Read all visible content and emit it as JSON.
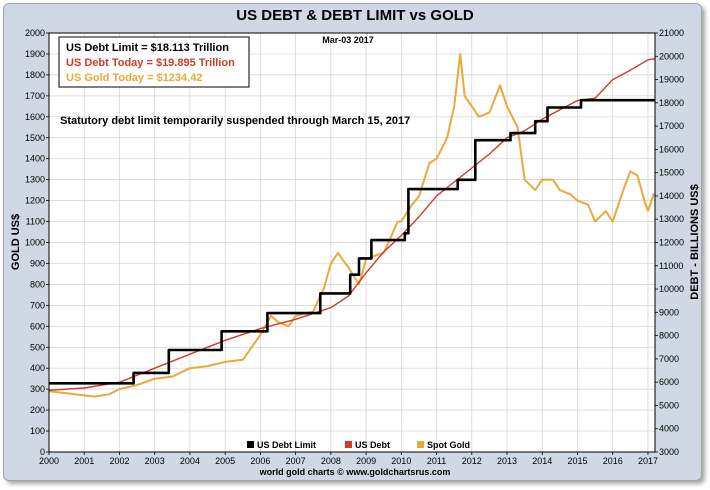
{
  "colors": {
    "limit": "#000000",
    "debt": "#d03a2c",
    "gold": "#eaa93a",
    "grid": "#d0d0d0",
    "plot_bg": "#ffffff"
  },
  "chart_data": {
    "type": "line",
    "title": "US DEBT & DEBT LIMIT vs GOLD",
    "date_label": "Mar-03  2017",
    "ylabel_left": "GOLD US$",
    "ylabel_right": "DEBT - BILLIONS US$",
    "credit": "world gold charts © www.goldchartsrus.com",
    "note": "Statutory debt limit temporarily suspended through March  15, 2017",
    "info_lines": [
      {
        "text": "US Debt Limit    = $18.113 Trillion",
        "color": "#000000"
      },
      {
        "text": "US Debt Today = $19.895 Trillion",
        "color": "#d03a2c"
      },
      {
        "text": "US Gold Today = $1234.42",
        "color": "#eaa93a"
      }
    ],
    "xlim": [
      2000,
      2017.2
    ],
    "ylim_left": [
      0,
      2000
    ],
    "ylim_right": [
      3000,
      21000
    ],
    "x_ticks": [
      "2000",
      "2001",
      "2002",
      "2003",
      "2004",
      "2005",
      "2006",
      "2007",
      "2008",
      "2009",
      "2010",
      "2011",
      "2012",
      "2013",
      "2014",
      "2015",
      "2016",
      "2017"
    ],
    "left_ticks": [
      "0",
      "100",
      "200",
      "300",
      "400",
      "500",
      "600",
      "700",
      "800",
      "900",
      "1000",
      "1100",
      "1200",
      "1300",
      "1400",
      "1500",
      "1600",
      "1700",
      "1800",
      "1900",
      "2000"
    ],
    "right_ticks": [
      "3000",
      "4000",
      "5000",
      "6000",
      "7000",
      "8000",
      "9000",
      "10000",
      "11000",
      "12000",
      "13000",
      "14000",
      "15000",
      "16000",
      "17000",
      "18000",
      "19000",
      "20000",
      "21000"
    ],
    "legend": [
      "US Debt Limit",
      "US Debt",
      "Spot Gold"
    ],
    "series": [
      {
        "name": "US Debt Limit",
        "axis": "right",
        "step": true,
        "x": [
          2000,
          2002.4,
          2003.4,
          2004.9,
          2006.2,
          2007.7,
          2008.55,
          2008.8,
          2009.15,
          2010.1,
          2010.2,
          2011.6,
          2012.1,
          2013.1,
          2013.8,
          2014.15,
          2015.1,
          2017.2
        ],
        "y": [
          5950,
          6400,
          7384,
          8184,
          8965,
          9815,
          10615,
          11315,
          12104,
          12394,
          14294,
          14694,
          16394,
          16699,
          17212,
          17800,
          18113,
          18113
        ]
      },
      {
        "name": "US Debt",
        "axis": "right",
        "x": [
          2000,
          2001,
          2002,
          2003,
          2004,
          2005,
          2006,
          2007,
          2008,
          2008.5,
          2009,
          2009.5,
          2010,
          2010.5,
          2011,
          2011.5,
          2012,
          2012.5,
          2013,
          2013.5,
          2014,
          2014.5,
          2015,
          2015.5,
          2016,
          2016.5,
          2017,
          2017.2
        ],
        "y": [
          5650,
          5750,
          6000,
          6600,
          7200,
          7800,
          8300,
          8700,
          9200,
          9700,
          10700,
          11600,
          12300,
          13100,
          14000,
          14600,
          15200,
          15800,
          16500,
          16800,
          17300,
          17700,
          18100,
          18200,
          19000,
          19400,
          19850,
          19895
        ]
      },
      {
        "name": "Spot Gold",
        "axis": "left",
        "x": [
          2000,
          2000.5,
          2001,
          2001.3,
          2001.7,
          2002,
          2002.5,
          2003,
          2003.5,
          2004,
          2004.5,
          2005,
          2005.5,
          2006,
          2006.3,
          2006.5,
          2006.8,
          2007,
          2007.5,
          2007.8,
          2008,
          2008.2,
          2008.5,
          2008.8,
          2009,
          2009.3,
          2009.5,
          2009.9,
          2010,
          2010.3,
          2010.5,
          2010.8,
          2011,
          2011.3,
          2011.5,
          2011.67,
          2011.8,
          2012,
          2012.2,
          2012.5,
          2012.8,
          2013,
          2013.3,
          2013.5,
          2013.8,
          2014,
          2014.3,
          2014.5,
          2014.8,
          2015,
          2015.3,
          2015.5,
          2015.8,
          2016,
          2016.3,
          2016.5,
          2016.7,
          2016.9,
          2017,
          2017.17
        ],
        "y": [
          290,
          280,
          270,
          265,
          275,
          300,
          320,
          350,
          360,
          400,
          410,
          430,
          440,
          560,
          650,
          620,
          600,
          650,
          670,
          780,
          900,
          950,
          880,
          800,
          920,
          940,
          950,
          1100,
          1100,
          1180,
          1220,
          1380,
          1400,
          1500,
          1650,
          1900,
          1700,
          1650,
          1600,
          1620,
          1750,
          1650,
          1550,
          1300,
          1250,
          1300,
          1300,
          1250,
          1230,
          1200,
          1180,
          1100,
          1150,
          1100,
          1250,
          1340,
          1320,
          1200,
          1150,
          1234
        ]
      }
    ]
  }
}
